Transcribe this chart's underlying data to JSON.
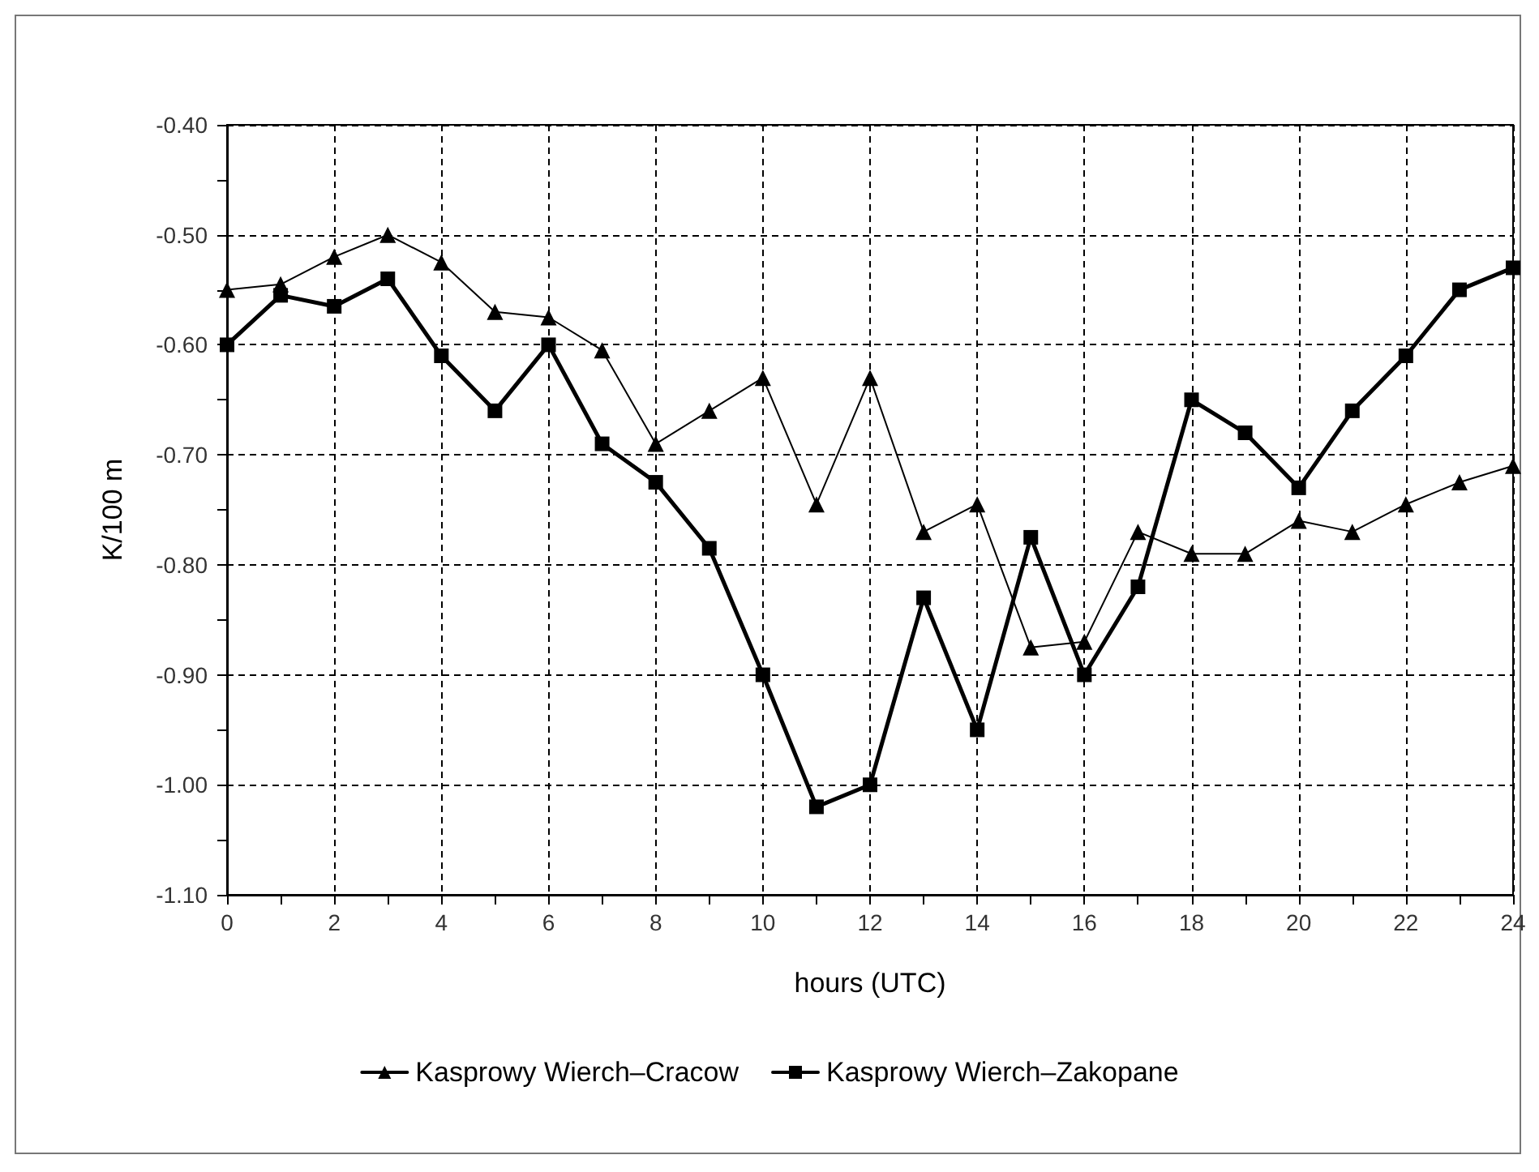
{
  "chart_data": {
    "type": "line",
    "xlabel": "hours (UTC)",
    "ylabel": "K/100 m",
    "x": [
      0,
      1,
      2,
      3,
      4,
      5,
      6,
      7,
      8,
      9,
      10,
      11,
      12,
      13,
      14,
      15,
      16,
      17,
      18,
      19,
      20,
      21,
      22,
      23,
      24
    ],
    "series": [
      {
        "name": "Kasprowy Wierch–Cracow",
        "color": "#000000",
        "marker": "triangle",
        "values": [
          -0.55,
          -0.545,
          -0.52,
          -0.5,
          -0.525,
          -0.57,
          -0.575,
          -0.605,
          -0.69,
          -0.66,
          -0.63,
          -0.745,
          -0.63,
          -0.77,
          -0.745,
          -0.875,
          -0.87,
          -0.77,
          -0.79,
          -0.79,
          -0.76,
          -0.77,
          -0.745,
          -0.725,
          -0.71
        ]
      },
      {
        "name": "Kasprowy Wierch–Zakopane",
        "color": "#000000",
        "marker": "square",
        "values": [
          -0.6,
          -0.555,
          -0.565,
          -0.54,
          -0.61,
          -0.66,
          -0.6,
          -0.69,
          -0.725,
          -0.785,
          -0.9,
          -1.02,
          -1.0,
          -0.83,
          -0.95,
          -0.775,
          -0.9,
          -0.82,
          -0.65,
          -0.68,
          -0.73,
          -0.66,
          -0.61,
          -0.55,
          -0.53
        ]
      }
    ],
    "xlim": [
      0,
      24
    ],
    "xticks": [
      0,
      {
        "value": 1,
        "label": null
      },
      2,
      {
        "value": 3,
        "label": null
      },
      4,
      {
        "value": 5,
        "label": null
      },
      6,
      {
        "value": 7,
        "label": null
      },
      8,
      {
        "value": 9,
        "label": null
      },
      10,
      {
        "value": 11,
        "label": null
      },
      12,
      {
        "value": 13,
        "label": null
      },
      14,
      {
        "value": 15,
        "label": null
      },
      16,
      {
        "value": 17,
        "label": null
      },
      18,
      {
        "value": 19,
        "label": null
      },
      20,
      {
        "value": 21,
        "label": null
      },
      22,
      {
        "value": 23,
        "label": null
      },
      24
    ],
    "ylim": [
      -1.1,
      -0.4
    ],
    "yticks": [
      {
        "value": -1.1,
        "label": "-1.10"
      },
      {
        "value": -1.05,
        "label": null
      },
      {
        "value": -1.0,
        "label": "-1.00"
      },
      {
        "value": -0.95,
        "label": null
      },
      {
        "value": -0.9,
        "label": "-0.90"
      },
      {
        "value": -0.85,
        "label": null
      },
      {
        "value": -0.8,
        "label": "-0.80"
      },
      {
        "value": -0.75,
        "label": null
      },
      {
        "value": -0.7,
        "label": "-0.70"
      },
      {
        "value": -0.65,
        "label": null
      },
      {
        "value": -0.6,
        "label": "-0.60"
      },
      {
        "value": -0.55,
        "label": null
      },
      {
        "value": -0.5,
        "label": "-0.50"
      },
      {
        "value": -0.45,
        "label": null
      },
      {
        "value": -0.4,
        "label": "-0.40"
      }
    ],
    "grid": true,
    "legend": "bottom",
    "line_style": "solid"
  }
}
